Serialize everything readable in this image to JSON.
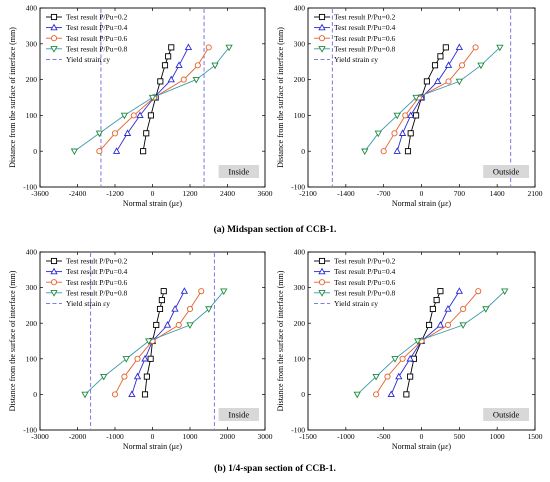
{
  "colors": {
    "series": [
      "#000000",
      "#2a2ad6",
      "#e8602a",
      "#1c8a3c",
      "#5a78c8"
    ],
    "teal_line": "#3a9aa8",
    "yield_line": "#6a6ae0",
    "tag_bg": "#d8d8d8"
  },
  "captions": {
    "top": "(a) Midspan section of CCB-1.",
    "bottom": "(b) 1/4-span section of CCB-1."
  },
  "chart_data": [
    {
      "type": "line",
      "panel_tag": "Inside",
      "xlabel": "Normal strain (με)",
      "ylabel": "Distance from the surface of interface (mm)",
      "xlim": [
        -3600,
        3600
      ],
      "ylim": [
        -100,
        400
      ],
      "xticks": [
        -3600,
        -2400,
        -1200,
        0,
        1200,
        2400,
        3600
      ],
      "yticks": [
        -100,
        0,
        100,
        200,
        300,
        400
      ],
      "yield_strain": [
        -1650,
        1650
      ],
      "legend": [
        "Test result P/Pu=0.2",
        "Test result P/Pu=0.4",
        "Test result P/Pu=0.6",
        "Test result P/Pu=0.8",
        "Yield strain εy"
      ],
      "legend_position": "top-left",
      "series": [
        {
          "marker": "square",
          "x": [
            -300,
            -200,
            -50,
            100,
            250,
            400,
            500,
            600
          ],
          "y": [
            0,
            50,
            100,
            150,
            195,
            240,
            265,
            290
          ]
        },
        {
          "marker": "triangle-up",
          "x": [
            -1150,
            -800,
            -400,
            50,
            600,
            850,
            1150
          ],
          "y": [
            0,
            50,
            100,
            150,
            200,
            240,
            290
          ]
        },
        {
          "marker": "circle",
          "x": [
            -1700,
            -1200,
            -600,
            50,
            1000,
            1450,
            1800
          ],
          "y": [
            0,
            50,
            100,
            150,
            200,
            240,
            290
          ]
        },
        {
          "marker": "triangle-down",
          "x": [
            -2500,
            -1700,
            -900,
            0,
            1400,
            2000,
            2450
          ],
          "y": [
            0,
            50,
            100,
            150,
            200,
            240,
            290
          ]
        }
      ]
    },
    {
      "type": "line",
      "panel_tag": "Outside",
      "xlabel": "Normal strain (με)",
      "ylabel": "Distance from the surface of interface (mm)",
      "xlim": [
        -2100,
        2100
      ],
      "ylim": [
        -100,
        400
      ],
      "xticks": [
        -2100,
        -1400,
        -700,
        0,
        700,
        1400,
        2100
      ],
      "yticks": [
        -100,
        0,
        100,
        200,
        300,
        400
      ],
      "yield_strain": [
        -1650,
        1650
      ],
      "legend": [
        "Test result P/Pu=0.2",
        "Test result P/Pu=0.4",
        "Test result P/Pu=0.6",
        "Test result P/Pu=0.8",
        "Yield strain εy"
      ],
      "legend_position": "top-left",
      "series": [
        {
          "marker": "square",
          "x": [
            -250,
            -200,
            -100,
            0,
            100,
            250,
            350,
            450
          ],
          "y": [
            0,
            50,
            100,
            150,
            195,
            240,
            265,
            290
          ]
        },
        {
          "marker": "triangle-up",
          "x": [
            -450,
            -350,
            -200,
            0,
            300,
            500,
            700
          ],
          "y": [
            0,
            50,
            100,
            150,
            195,
            240,
            290
          ]
        },
        {
          "marker": "circle",
          "x": [
            -700,
            -500,
            -300,
            -50,
            500,
            750,
            1000
          ],
          "y": [
            0,
            50,
            100,
            150,
            195,
            240,
            290
          ]
        },
        {
          "marker": "triangle-down",
          "x": [
            -1050,
            -800,
            -450,
            -100,
            700,
            1100,
            1450
          ],
          "y": [
            0,
            50,
            100,
            150,
            195,
            240,
            290
          ]
        }
      ]
    },
    {
      "type": "line",
      "panel_tag": "Inside",
      "xlabel": "Normal strain (με)",
      "ylabel": "Distance from the surface of interface (mm)",
      "xlim": [
        -3000,
        3000
      ],
      "ylim": [
        -100,
        400
      ],
      "xticks": [
        -3000,
        -2000,
        -1000,
        0,
        1000,
        2000,
        3000
      ],
      "yticks": [
        -100,
        0,
        100,
        200,
        300,
        400
      ],
      "yield_strain": [
        -1650,
        1650
      ],
      "legend": [
        "Test result P/Pu=0.2",
        "Test result P/Pu=0.4",
        "Test result P/Pu=0.6",
        "Test result P/Pu=0.8",
        "Yield strain εy"
      ],
      "legend_position": "top-left",
      "series": [
        {
          "marker": "square",
          "x": [
            -200,
            -150,
            -50,
            0,
            100,
            200,
            250,
            300
          ],
          "y": [
            0,
            50,
            100,
            150,
            195,
            240,
            265,
            290
          ]
        },
        {
          "marker": "triangle-up",
          "x": [
            -550,
            -400,
            -200,
            0,
            400,
            600,
            850
          ],
          "y": [
            0,
            50,
            100,
            150,
            195,
            240,
            290
          ]
        },
        {
          "marker": "circle",
          "x": [
            -1000,
            -750,
            -400,
            0,
            700,
            1000,
            1300
          ],
          "y": [
            0,
            50,
            100,
            150,
            195,
            240,
            290
          ]
        },
        {
          "marker": "triangle-down",
          "x": [
            -1800,
            -1300,
            -700,
            -100,
            1000,
            1500,
            1900
          ],
          "y": [
            0,
            50,
            100,
            150,
            195,
            240,
            290
          ]
        }
      ]
    },
    {
      "type": "line",
      "panel_tag": "Outside",
      "xlabel": "Normal strain (με)",
      "ylabel": "Distance from the surface of interface (mm)",
      "xlim": [
        -1500,
        1500
      ],
      "ylim": [
        -100,
        400
      ],
      "xticks": [
        -1500,
        -1000,
        -500,
        0,
        500,
        1000,
        1500
      ],
      "yticks": [
        -100,
        0,
        100,
        200,
        300,
        400
      ],
      "legend": [
        "Test result P/Pu=0.2",
        "Test result P/Pu=0.4",
        "Test result P/Pu=0.6",
        "Test result P/Pu=0.8",
        "Yield strain εy"
      ],
      "legend_position": "top-left",
      "series": [
        {
          "marker": "square",
          "x": [
            -200,
            -150,
            -100,
            0,
            100,
            150,
            200,
            250
          ],
          "y": [
            0,
            50,
            100,
            150,
            195,
            240,
            265,
            290
          ]
        },
        {
          "marker": "triangle-up",
          "x": [
            -400,
            -300,
            -150,
            0,
            250,
            350,
            500
          ],
          "y": [
            0,
            50,
            100,
            150,
            195,
            240,
            290
          ]
        },
        {
          "marker": "circle",
          "x": [
            -600,
            -450,
            -250,
            0,
            350,
            550,
            750
          ],
          "y": [
            0,
            50,
            100,
            150,
            195,
            240,
            290
          ]
        },
        {
          "marker": "triangle-down",
          "x": [
            -850,
            -600,
            -350,
            -50,
            550,
            850,
            1100
          ],
          "y": [
            0,
            50,
            100,
            150,
            195,
            240,
            290
          ]
        }
      ]
    }
  ]
}
